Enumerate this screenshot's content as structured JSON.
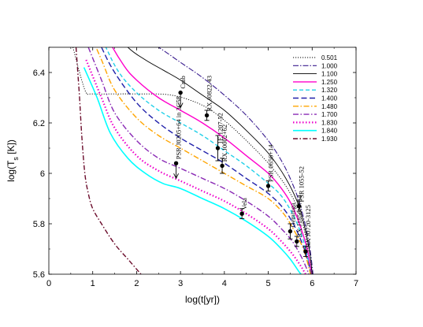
{
  "chart_data": {
    "type": "line",
    "xlabel": "log(t[yr])",
    "ylabel": "log(T_s [K])",
    "xlim": [
      0,
      7
    ],
    "ylim": [
      5.6,
      6.5
    ],
    "x_ticks": [
      0,
      1,
      2,
      3,
      4,
      5,
      6,
      7
    ],
    "y_ticks": [
      5.6,
      5.8,
      6.0,
      6.2,
      6.4
    ],
    "legend_position": "top-right",
    "series": [
      {
        "name": "0.501",
        "color": "#000000",
        "dash": "1.2,1.8",
        "width": 0.9,
        "points": [
          [
            0.55,
            6.5
          ],
          [
            0.7,
            6.4
          ],
          [
            0.85,
            6.32
          ],
          [
            1.0,
            6.315
          ],
          [
            2.0,
            6.315
          ],
          [
            2.8,
            6.31
          ],
          [
            3.5,
            6.27
          ],
          [
            4.0,
            6.21
          ],
          [
            4.5,
            6.13
          ],
          [
            5.0,
            6.04
          ],
          [
            5.4,
            5.95
          ],
          [
            5.7,
            5.85
          ],
          [
            5.85,
            5.75
          ],
          [
            5.95,
            5.65
          ],
          [
            6.0,
            5.6
          ]
        ]
      },
      {
        "name": "1.000",
        "color": "#3a1d8f",
        "dash": "7,2,1.5,2",
        "width": 1.1,
        "points": [
          [
            1.4,
            6.65
          ],
          [
            2.0,
            6.55
          ],
          [
            2.5,
            6.5
          ],
          [
            3.0,
            6.44
          ],
          [
            3.5,
            6.38
          ],
          [
            4.0,
            6.31
          ],
          [
            4.5,
            6.23
          ],
          [
            5.0,
            6.13
          ],
          [
            5.3,
            6.05
          ],
          [
            5.5,
            5.98
          ],
          [
            5.7,
            5.89
          ],
          [
            5.85,
            5.79
          ],
          [
            5.95,
            5.7
          ],
          [
            6.02,
            5.6
          ]
        ]
      },
      {
        "name": "1.100",
        "color": "#000000",
        "dash": "",
        "width": 0.9,
        "points": [
          [
            1.3,
            6.6
          ],
          [
            1.8,
            6.5
          ],
          [
            2.2,
            6.45
          ],
          [
            2.6,
            6.41
          ],
          [
            3.0,
            6.37
          ],
          [
            3.5,
            6.31
          ],
          [
            4.0,
            6.25
          ],
          [
            4.5,
            6.17
          ],
          [
            5.0,
            6.08
          ],
          [
            5.4,
            5.98
          ],
          [
            5.7,
            5.87
          ],
          [
            5.85,
            5.77
          ],
          [
            5.95,
            5.68
          ],
          [
            6.0,
            5.6
          ]
        ]
      },
      {
        "name": "1.250",
        "color": "#ff00cc",
        "dash": "",
        "width": 1.4,
        "points": [
          [
            1.0,
            6.68
          ],
          [
            1.3,
            6.55
          ],
          [
            1.7,
            6.43
          ],
          [
            2.0,
            6.37
          ],
          [
            2.5,
            6.3
          ],
          [
            3.0,
            6.25
          ],
          [
            3.5,
            6.2
          ],
          [
            4.0,
            6.14
          ],
          [
            4.5,
            6.07
          ],
          [
            5.0,
            6.0
          ],
          [
            5.3,
            5.94
          ],
          [
            5.55,
            5.87
          ],
          [
            5.75,
            5.78
          ],
          [
            5.9,
            5.69
          ],
          [
            5.98,
            5.6
          ]
        ]
      },
      {
        "name": "1.320",
        "color": "#20d0e8",
        "dash": "5,3",
        "width": 1.4,
        "points": [
          [
            1.0,
            6.62
          ],
          [
            1.3,
            6.5
          ],
          [
            1.6,
            6.4
          ],
          [
            2.0,
            6.32
          ],
          [
            2.5,
            6.25
          ],
          [
            3.0,
            6.2
          ],
          [
            3.5,
            6.15
          ],
          [
            4.0,
            6.09
          ],
          [
            4.5,
            6.03
          ],
          [
            5.0,
            5.96
          ],
          [
            5.3,
            5.91
          ],
          [
            5.55,
            5.84
          ],
          [
            5.75,
            5.76
          ],
          [
            5.88,
            5.68
          ],
          [
            5.97,
            5.6
          ]
        ]
      },
      {
        "name": "1.400",
        "color": "#2020aa",
        "dash": "7,3.5",
        "width": 1.4,
        "points": [
          [
            0.9,
            6.62
          ],
          [
            1.2,
            6.5
          ],
          [
            1.5,
            6.4
          ],
          [
            2.0,
            6.28
          ],
          [
            2.5,
            6.2
          ],
          [
            3.0,
            6.14
          ],
          [
            3.5,
            6.09
          ],
          [
            4.0,
            6.04
          ],
          [
            4.5,
            5.98
          ],
          [
            5.0,
            5.92
          ],
          [
            5.35,
            5.86
          ],
          [
            5.6,
            5.79
          ],
          [
            5.8,
            5.71
          ],
          [
            5.92,
            5.64
          ],
          [
            5.97,
            5.6
          ]
        ]
      },
      {
        "name": "1.480",
        "color": "#ffa500",
        "dash": "7,2.5,1.5,2.5",
        "width": 1.4,
        "points": [
          [
            0.9,
            6.57
          ],
          [
            1.2,
            6.45
          ],
          [
            1.5,
            6.33
          ],
          [
            2.0,
            6.22
          ],
          [
            2.5,
            6.15
          ],
          [
            3.0,
            6.1
          ],
          [
            3.5,
            6.05
          ],
          [
            4.0,
            6.0
          ],
          [
            4.5,
            5.95
          ],
          [
            5.0,
            5.9
          ],
          [
            5.35,
            5.84
          ],
          [
            5.6,
            5.77
          ],
          [
            5.8,
            5.7
          ],
          [
            5.92,
            5.63
          ],
          [
            5.96,
            5.6
          ]
        ]
      },
      {
        "name": "1.700",
        "color": "#8a2ab5",
        "dash": "7,2.5,1.5,2.5",
        "width": 1.4,
        "points": [
          [
            0.9,
            6.5
          ],
          [
            1.2,
            6.37
          ],
          [
            1.5,
            6.24
          ],
          [
            2.0,
            6.13
          ],
          [
            2.5,
            6.06
          ],
          [
            3.0,
            6.02
          ],
          [
            3.5,
            5.98
          ],
          [
            4.0,
            5.94
          ],
          [
            4.5,
            5.89
          ],
          [
            5.0,
            5.83
          ],
          [
            5.3,
            5.78
          ],
          [
            5.55,
            5.73
          ],
          [
            5.75,
            5.67
          ],
          [
            5.88,
            5.62
          ],
          [
            5.92,
            5.6
          ]
        ]
      },
      {
        "name": "1.830",
        "color": "#ee00cc",
        "dash": "1.5,2.5",
        "width": 2.2,
        "points": [
          [
            0.85,
            6.45
          ],
          [
            1.2,
            6.3
          ],
          [
            1.5,
            6.18
          ],
          [
            2.0,
            6.07
          ],
          [
            2.5,
            6.01
          ],
          [
            3.0,
            5.97
          ],
          [
            3.5,
            5.93
          ],
          [
            4.0,
            5.89
          ],
          [
            4.5,
            5.84
          ],
          [
            5.0,
            5.78
          ],
          [
            5.3,
            5.73
          ],
          [
            5.55,
            5.68
          ],
          [
            5.75,
            5.63
          ],
          [
            5.85,
            5.6
          ]
        ]
      },
      {
        "name": "1.840",
        "color": "#00ffff",
        "dash": "",
        "width": 1.6,
        "points": [
          [
            0.8,
            6.42
          ],
          [
            1.1,
            6.3
          ],
          [
            1.4,
            6.16
          ],
          [
            1.8,
            6.06
          ],
          [
            2.2,
            6.0
          ],
          [
            2.6,
            5.96
          ],
          [
            3.0,
            5.94
          ],
          [
            3.5,
            5.9
          ],
          [
            4.0,
            5.86
          ],
          [
            4.5,
            5.81
          ],
          [
            5.0,
            5.75
          ],
          [
            5.3,
            5.7
          ],
          [
            5.5,
            5.66
          ],
          [
            5.7,
            5.61
          ],
          [
            5.75,
            5.6
          ]
        ]
      },
      {
        "name": "1.930",
        "color": "#6a0a2a",
        "dash": "6,2.5,1.5,2.5",
        "width": 1.4,
        "points": [
          [
            0.62,
            6.5
          ],
          [
            0.66,
            6.4
          ],
          [
            0.7,
            6.3
          ],
          [
            0.75,
            6.15
          ],
          [
            0.82,
            6.0
          ],
          [
            0.9,
            5.92
          ],
          [
            1.0,
            5.86
          ],
          [
            1.2,
            5.8
          ],
          [
            1.5,
            5.72
          ],
          [
            1.8,
            5.66
          ],
          [
            2.1,
            5.6
          ]
        ]
      }
    ],
    "observations": [
      {
        "label": "Crab",
        "x": 3.0,
        "y": 6.32,
        "upper_limit": true
      },
      {
        "label": "RX J0822-43",
        "x": 3.6,
        "y": 6.23,
        "err_lo": 0.02,
        "err_hi": 0.02
      },
      {
        "label": "1E 1207-52",
        "x": 3.85,
        "y": 6.1,
        "err_lo": 0.05,
        "err_hi": 0.05
      },
      {
        "label": "RX J0002+62",
        "x": 3.95,
        "y": 6.03,
        "err_lo": 0.03,
        "err_hi": 0.03
      },
      {
        "label": "PSR J0205+64 in 3C58",
        "x": 2.9,
        "y": 6.04,
        "upper_limit": true
      },
      {
        "label": "Vela",
        "x": 4.4,
        "y": 5.84,
        "err_lo": 0.02,
        "err_hi": 0.02
      },
      {
        "label": "PSR 0656+14",
        "x": 5.0,
        "y": 5.95,
        "err_lo": 0.02,
        "err_hi": 0.02
      },
      {
        "label": "Geminga",
        "x": 5.5,
        "y": 5.77,
        "err_lo": 0.03,
        "err_hi": 0.03
      },
      {
        "label": "PSR 1055-52",
        "x": 5.7,
        "y": 5.87,
        "err_lo": 0.02,
        "err_hi": 0.02
      },
      {
        "label": "RX J1856-3754",
        "x": 5.65,
        "y": 5.73,
        "err_lo": 0.02,
        "err_hi": 0.02
      },
      {
        "label": "RX J0720-3125",
        "x": 5.85,
        "y": 5.69,
        "err_lo": 0.02,
        "err_hi": 0.02
      }
    ]
  }
}
